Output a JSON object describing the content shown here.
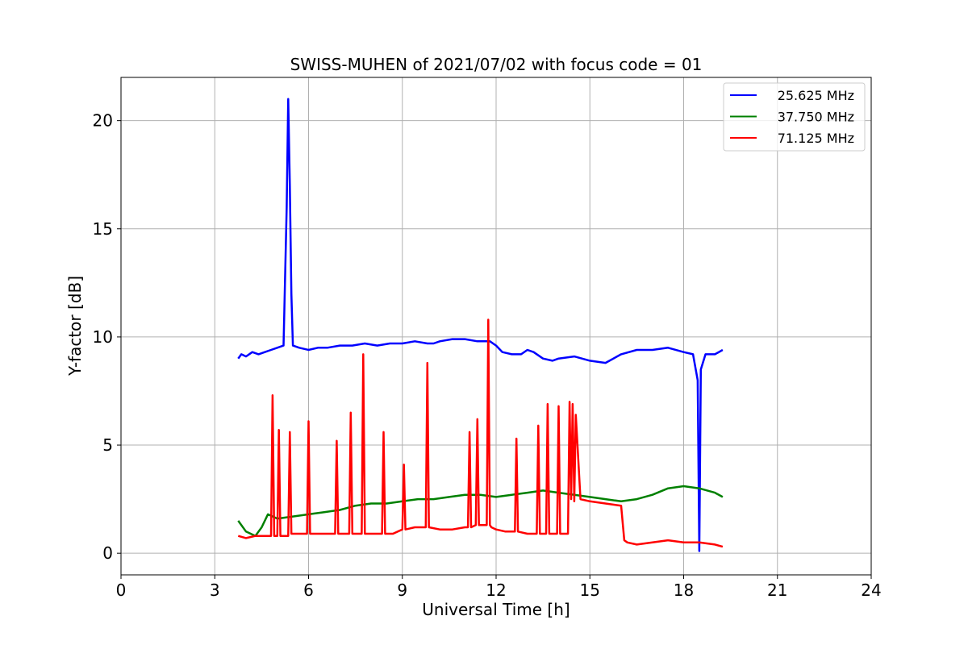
{
  "chart_data": {
    "type": "line",
    "title": "SWISS-MUHEN of 2021/07/02 with focus code = 01",
    "xlabel": "Universal Time [h]",
    "ylabel": "Y-factor [dB]",
    "xlim": [
      0,
      24
    ],
    "ylim": [
      -1,
      22
    ],
    "xticks": [
      0,
      3,
      6,
      9,
      12,
      15,
      18,
      21,
      24
    ],
    "yticks": [
      0,
      5,
      10,
      15,
      20
    ],
    "grid": true,
    "legend_position": "top-right",
    "series": [
      {
        "name": "25.625 MHz",
        "color": "#0000ff",
        "x": [
          3.75,
          3.85,
          4.0,
          4.2,
          4.4,
          4.6,
          4.8,
          5.0,
          5.2,
          5.3,
          5.35,
          5.4,
          5.45,
          5.5,
          5.7,
          6.0,
          6.3,
          6.6,
          7.0,
          7.4,
          7.8,
          8.2,
          8.6,
          9.0,
          9.4,
          9.8,
          10.0,
          10.2,
          10.6,
          11.0,
          11.4,
          11.8,
          12.0,
          12.2,
          12.5,
          12.8,
          13.0,
          13.2,
          13.5,
          13.8,
          14.0,
          14.5,
          15.0,
          15.5,
          16.0,
          16.5,
          17.0,
          17.5,
          18.0,
          18.3,
          18.45,
          18.5,
          18.55,
          18.7,
          19.0,
          19.25
        ],
        "y": [
          9.0,
          9.2,
          9.1,
          9.3,
          9.2,
          9.3,
          9.4,
          9.5,
          9.6,
          16.0,
          21.0,
          17.0,
          12.0,
          9.6,
          9.5,
          9.4,
          9.5,
          9.5,
          9.6,
          9.6,
          9.7,
          9.6,
          9.7,
          9.7,
          9.8,
          9.7,
          9.7,
          9.8,
          9.9,
          9.9,
          9.8,
          9.8,
          9.6,
          9.3,
          9.2,
          9.2,
          9.4,
          9.3,
          9.0,
          8.9,
          9.0,
          9.1,
          8.9,
          8.8,
          9.2,
          9.4,
          9.4,
          9.5,
          9.3,
          9.2,
          8.0,
          0.1,
          8.5,
          9.2,
          9.2,
          9.4
        ]
      },
      {
        "name": "37.750 MHz",
        "color": "#008000",
        "x": [
          3.75,
          4.0,
          4.3,
          4.5,
          4.7,
          5.0,
          5.5,
          6.0,
          6.5,
          7.0,
          7.5,
          8.0,
          8.5,
          9.0,
          9.5,
          10.0,
          10.5,
          11.0,
          11.5,
          12.0,
          12.5,
          13.0,
          13.5,
          14.0,
          14.5,
          15.0,
          15.5,
          16.0,
          16.5,
          17.0,
          17.5,
          18.0,
          18.5,
          19.0,
          19.25
        ],
        "y": [
          1.5,
          1.0,
          0.8,
          1.2,
          1.8,
          1.6,
          1.7,
          1.8,
          1.9,
          2.0,
          2.2,
          2.3,
          2.3,
          2.4,
          2.5,
          2.5,
          2.6,
          2.7,
          2.7,
          2.6,
          2.7,
          2.8,
          2.9,
          2.8,
          2.7,
          2.6,
          2.5,
          2.4,
          2.5,
          2.7,
          3.0,
          3.1,
          3.0,
          2.8,
          2.6
        ]
      },
      {
        "name": "71.125 MHz",
        "color": "#ff0000",
        "x": [
          3.75,
          4.0,
          4.3,
          4.6,
          4.8,
          4.85,
          4.9,
          5.0,
          5.05,
          5.1,
          5.35,
          5.4,
          5.45,
          5.7,
          5.95,
          6.0,
          6.05,
          6.3,
          6.85,
          6.9,
          6.95,
          7.2,
          7.3,
          7.35,
          7.4,
          7.5,
          7.7,
          7.75,
          7.8,
          8.0,
          8.35,
          8.4,
          8.45,
          8.7,
          9.0,
          9.05,
          9.1,
          9.4,
          9.75,
          9.8,
          9.85,
          10.2,
          10.6,
          11.0,
          11.1,
          11.15,
          11.2,
          11.35,
          11.4,
          11.45,
          11.7,
          11.75,
          11.8,
          11.85,
          12.0,
          12.3,
          12.6,
          12.65,
          12.7,
          13.0,
          13.3,
          13.35,
          13.4,
          13.6,
          13.65,
          13.7,
          13.95,
          14.0,
          14.05,
          14.3,
          14.35,
          14.4,
          14.45,
          14.5,
          14.55,
          14.7,
          15.0,
          15.5,
          16.0,
          16.1,
          16.2,
          16.5,
          17.0,
          17.5,
          18.0,
          18.5,
          19.0,
          19.25
        ],
        "y": [
          0.8,
          0.7,
          0.8,
          0.8,
          0.8,
          7.3,
          0.8,
          0.8,
          5.7,
          0.8,
          0.8,
          5.6,
          0.9,
          0.9,
          0.9,
          6.1,
          0.9,
          0.9,
          0.9,
          5.2,
          0.9,
          0.9,
          0.9,
          6.5,
          0.9,
          0.9,
          0.9,
          9.2,
          0.9,
          0.9,
          0.9,
          5.6,
          0.9,
          0.9,
          1.1,
          4.1,
          1.1,
          1.2,
          1.2,
          8.8,
          1.2,
          1.1,
          1.1,
          1.2,
          1.2,
          5.6,
          1.2,
          1.3,
          6.2,
          1.3,
          1.3,
          10.8,
          1.3,
          1.2,
          1.1,
          1.0,
          1.0,
          5.3,
          1.0,
          0.9,
          0.9,
          5.9,
          0.9,
          0.9,
          6.9,
          0.9,
          0.9,
          6.8,
          0.9,
          0.9,
          7.0,
          2.5,
          6.9,
          2.4,
          6.4,
          2.5,
          2.4,
          2.3,
          2.2,
          0.6,
          0.5,
          0.4,
          0.5,
          0.6,
          0.5,
          0.5,
          0.4,
          0.3
        ]
      }
    ]
  }
}
